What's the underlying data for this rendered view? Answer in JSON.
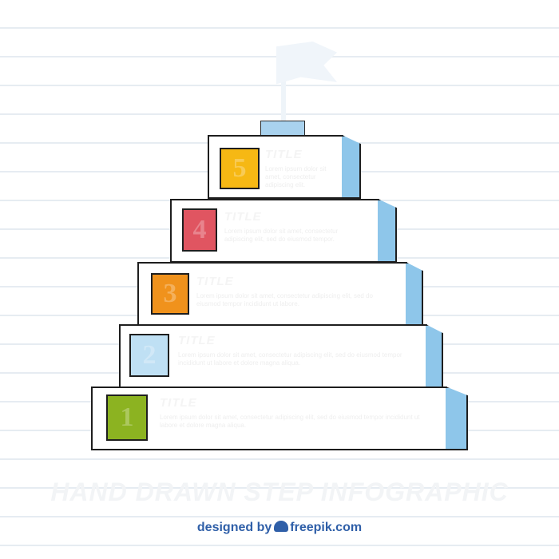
{
  "heading": "HAND DRAWN STEP INFOGRAPHIC",
  "steps": [
    {
      "number": "1",
      "title": "TITLE",
      "body": "Lorem ipsum dolor sit amet, consectetur adipiscing elit, sed do eiusmod tempor incididunt ut labore et dolore magna aliqua.",
      "color": "#8cb321"
    },
    {
      "number": "2",
      "title": "TITLE",
      "body": "Lorem ipsum dolor sit amet, consectetur adipiscing elit, sed do eiusmod tempor incididunt ut labore et dolore magna aliqua.",
      "color": "#bfe0f4"
    },
    {
      "number": "3",
      "title": "TITLE",
      "body": "Lorem ipsum dolor sit amet, consectetur adipiscing elit, sed do eiusmod tempor incididunt ut labore.",
      "color": "#f0921c"
    },
    {
      "number": "4",
      "title": "TITLE",
      "body": "Lorem ipsum dolor sit amet, consectetur adipiscing elit, sed do eiusmod tempor.",
      "color": "#e05561"
    },
    {
      "number": "5",
      "title": "TITLE",
      "body": "Lorem ipsum dolor sit amet, consectetur adipiscing elit.",
      "color": "#f6b814"
    }
  ],
  "credit": {
    "prefix": "designed by",
    "brand": "freepik.com",
    "icon": "freepik-logo-icon"
  },
  "colors": {
    "side": "#8ec6ea",
    "outline": "#1e1e1e",
    "credit": "#2f5fa8"
  }
}
